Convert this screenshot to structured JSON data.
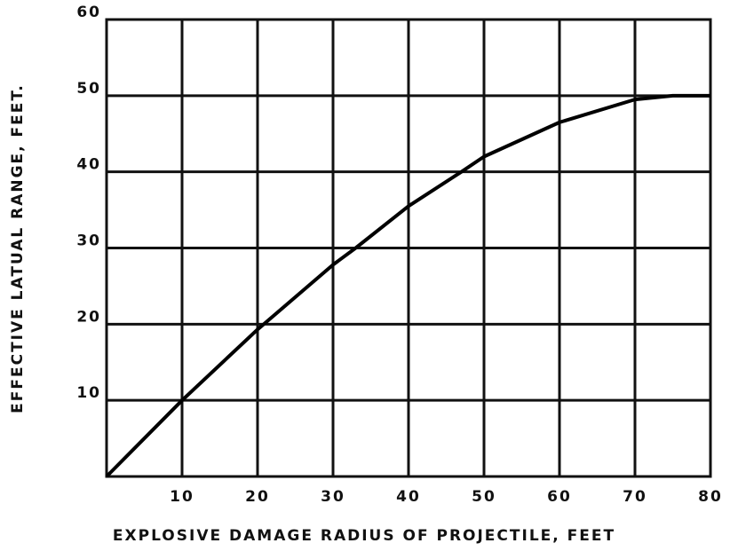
{
  "chart_data": {
    "type": "line",
    "xlabel": "EXPLOSIVE DAMAGE RADIUS OF PROJECTILE, FEET",
    "ylabel": "EFFECTIVE LATUAL RANGE, FEET.",
    "x": [
      0,
      10,
      20,
      30,
      33,
      40,
      47,
      50,
      60,
      70,
      75,
      80
    ],
    "series": [
      {
        "color": "#000000",
        "values": [
          0,
          10,
          19.3,
          27.8,
          30,
          35.5,
          40,
          42,
          46.5,
          49.5,
          50,
          50
        ]
      }
    ],
    "xlim": [
      0,
      80
    ],
    "ylim": [
      0,
      60
    ],
    "xticks": [
      10,
      20,
      30,
      40,
      50,
      60,
      70,
      80
    ],
    "yticks": [
      10,
      20,
      30,
      40,
      50,
      60
    ],
    "grid": true
  }
}
